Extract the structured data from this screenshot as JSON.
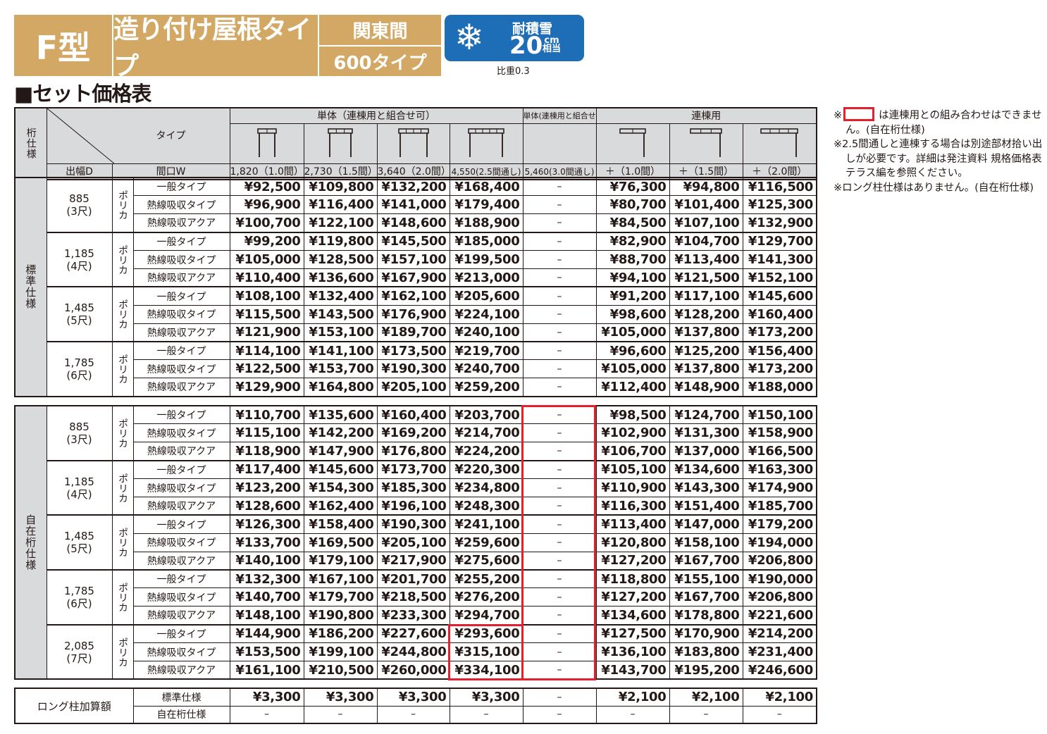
{
  "banner": {
    "type": "F型",
    "roof": "造り付け屋根タイプ",
    "module": "関東間",
    "size": "600タイプ",
    "snow_label": "耐積雪",
    "snow_value": "20",
    "snow_unit": "cm",
    "snow_sub": "相当",
    "ratio": "比重0.3",
    "snow_icon": "snowflake-icon"
  },
  "heading": "■セット価格表",
  "header": {
    "beam_spec": "桁仕様",
    "type_label": "タイプ",
    "depth_label": "出幅D",
    "width_label": "間口W",
    "group_single": "単体（連棟用と組合せ可）",
    "group_single_nc": "単体(連棟用と組合せ不可)",
    "group_linked": "連棟用",
    "columns": [
      "1,820（1.0間）",
      "2,730（1.5間）",
      "3,640（2.0間）",
      "4,550(2.5間通し)",
      "5,460(3.0間通し)",
      "＋（1.0間）",
      "＋（1.5間）",
      "＋（2.0間）"
    ]
  },
  "sections": [
    {
      "label": "標準仕様",
      "groups": [
        {
          "d": "885",
          "shaku": "(3尺)",
          "material": "ポリカ",
          "rows": [
            {
              "type": "一般タイプ",
              "prices": [
                "¥92,500",
                "¥109,800",
                "¥132,200",
                "¥168,400",
                "–",
                "¥76,300",
                "¥94,800",
                "¥116,500"
              ]
            },
            {
              "type": "熱線吸収タイプ",
              "prices": [
                "¥96,900",
                "¥116,400",
                "¥141,000",
                "¥179,400",
                "–",
                "¥80,700",
                "¥101,400",
                "¥125,300"
              ]
            },
            {
              "type": "熱線吸収アクア",
              "prices": [
                "¥100,700",
                "¥122,100",
                "¥148,600",
                "¥188,900",
                "–",
                "¥84,500",
                "¥107,100",
                "¥132,900"
              ]
            }
          ]
        },
        {
          "d": "1,185",
          "shaku": "(4尺)",
          "material": "ポリカ",
          "rows": [
            {
              "type": "一般タイプ",
              "prices": [
                "¥99,200",
                "¥119,800",
                "¥145,500",
                "¥185,000",
                "–",
                "¥82,900",
                "¥104,700",
                "¥129,700"
              ]
            },
            {
              "type": "熱線吸収タイプ",
              "prices": [
                "¥105,000",
                "¥128,500",
                "¥157,100",
                "¥199,500",
                "–",
                "¥88,700",
                "¥113,400",
                "¥141,300"
              ]
            },
            {
              "type": "熱線吸収アクア",
              "prices": [
                "¥110,400",
                "¥136,600",
                "¥167,900",
                "¥213,000",
                "–",
                "¥94,100",
                "¥121,500",
                "¥152,100"
              ]
            }
          ]
        },
        {
          "d": "1,485",
          "shaku": "(5尺)",
          "material": "ポリカ",
          "rows": [
            {
              "type": "一般タイプ",
              "prices": [
                "¥108,100",
                "¥132,400",
                "¥162,100",
                "¥205,600",
                "–",
                "¥91,200",
                "¥117,100",
                "¥145,600"
              ]
            },
            {
              "type": "熱線吸収タイプ",
              "prices": [
                "¥115,500",
                "¥143,500",
                "¥176,900",
                "¥224,100",
                "–",
                "¥98,600",
                "¥128,200",
                "¥160,400"
              ]
            },
            {
              "type": "熱線吸収アクア",
              "prices": [
                "¥121,900",
                "¥153,100",
                "¥189,700",
                "¥240,100",
                "–",
                "¥105,000",
                "¥137,800",
                "¥173,200"
              ]
            }
          ]
        },
        {
          "d": "1,785",
          "shaku": "(6尺)",
          "material": "ポリカ",
          "rows": [
            {
              "type": "一般タイプ",
              "prices": [
                "¥114,100",
                "¥141,100",
                "¥173,500",
                "¥219,700",
                "–",
                "¥96,600",
                "¥125,200",
                "¥156,400"
              ]
            },
            {
              "type": "熱線吸収タイプ",
              "prices": [
                "¥122,500",
                "¥153,700",
                "¥190,300",
                "¥240,700",
                "–",
                "¥105,000",
                "¥137,800",
                "¥173,200"
              ]
            },
            {
              "type": "熱線吸収アクア",
              "prices": [
                "¥129,900",
                "¥164,800",
                "¥205,100",
                "¥259,200",
                "–",
                "¥112,400",
                "¥148,900",
                "¥188,000"
              ]
            }
          ]
        }
      ]
    },
    {
      "label": "自在桁仕様",
      "groups": [
        {
          "d": "885",
          "shaku": "(3尺)",
          "material": "ポリカ",
          "rows": [
            {
              "type": "一般タイプ",
              "prices": [
                "¥110,700",
                "¥135,600",
                "¥160,400",
                "¥203,700",
                "–",
                "¥98,500",
                "¥124,700",
                "¥150,100"
              ]
            },
            {
              "type": "熱線吸収タイプ",
              "prices": [
                "¥115,100",
                "¥142,200",
                "¥169,200",
                "¥214,700",
                "–",
                "¥102,900",
                "¥131,300",
                "¥158,900"
              ]
            },
            {
              "type": "熱線吸収アクア",
              "prices": [
                "¥118,900",
                "¥147,900",
                "¥176,800",
                "¥224,200",
                "–",
                "¥106,700",
                "¥137,000",
                "¥166,500"
              ]
            }
          ]
        },
        {
          "d": "1,185",
          "shaku": "(4尺)",
          "material": "ポリカ",
          "rows": [
            {
              "type": "一般タイプ",
              "prices": [
                "¥117,400",
                "¥145,600",
                "¥173,700",
                "¥220,300",
                "–",
                "¥105,100",
                "¥134,600",
                "¥163,300"
              ]
            },
            {
              "type": "熱線吸収タイプ",
              "prices": [
                "¥123,200",
                "¥154,300",
                "¥185,300",
                "¥234,800",
                "–",
                "¥110,900",
                "¥143,300",
                "¥174,900"
              ]
            },
            {
              "type": "熱線吸収アクア",
              "prices": [
                "¥128,600",
                "¥162,400",
                "¥196,100",
                "¥248,300",
                "–",
                "¥116,300",
                "¥151,400",
                "¥185,700"
              ]
            }
          ]
        },
        {
          "d": "1,485",
          "shaku": "(5尺)",
          "material": "ポリカ",
          "rows": [
            {
              "type": "一般タイプ",
              "prices": [
                "¥126,300",
                "¥158,400",
                "¥190,300",
                "¥241,100",
                "–",
                "¥113,400",
                "¥147,000",
                "¥179,200"
              ]
            },
            {
              "type": "熱線吸収タイプ",
              "prices": [
                "¥133,700",
                "¥169,500",
                "¥205,100",
                "¥259,600",
                "–",
                "¥120,800",
                "¥158,100",
                "¥194,000"
              ]
            },
            {
              "type": "熱線吸収アクア",
              "prices": [
                "¥140,100",
                "¥179,100",
                "¥217,900",
                "¥275,600",
                "–",
                "¥127,200",
                "¥167,700",
                "¥206,800"
              ]
            }
          ]
        },
        {
          "d": "1,785",
          "shaku": "(6尺)",
          "material": "ポリカ",
          "rows": [
            {
              "type": "一般タイプ",
              "prices": [
                "¥132,300",
                "¥167,100",
                "¥201,700",
                "¥255,200",
                "–",
                "¥118,800",
                "¥155,100",
                "¥190,000"
              ]
            },
            {
              "type": "熱線吸収タイプ",
              "prices": [
                "¥140,700",
                "¥179,700",
                "¥218,500",
                "¥276,200",
                "–",
                "¥127,200",
                "¥167,700",
                "¥206,800"
              ]
            },
            {
              "type": "熱線吸収アクア",
              "prices": [
                "¥148,100",
                "¥190,800",
                "¥233,300",
                "¥294,700",
                "–",
                "¥134,600",
                "¥178,800",
                "¥221,600"
              ]
            }
          ]
        },
        {
          "d": "2,085",
          "shaku": "(7尺)",
          "material": "ポリカ",
          "rows": [
            {
              "type": "一般タイプ",
              "prices": [
                "¥144,900",
                "¥186,200",
                "¥227,600",
                "¥293,600",
                "–",
                "¥127,500",
                "¥170,900",
                "¥214,200"
              ]
            },
            {
              "type": "熱線吸収タイプ",
              "prices": [
                "¥153,500",
                "¥199,100",
                "¥244,800",
                "¥315,100",
                "–",
                "¥136,100",
                "¥183,800",
                "¥231,400"
              ]
            },
            {
              "type": "熱線吸収アクア",
              "prices": [
                "¥161,100",
                "¥210,500",
                "¥260,000",
                "¥334,100",
                "–",
                "¥143,700",
                "¥195,200",
                "¥246,600"
              ]
            }
          ]
        }
      ]
    }
  ],
  "long_post": {
    "label": "ロング柱加算額",
    "rows": [
      {
        "spec": "標準仕様",
        "prices": [
          "¥3,300",
          "¥3,300",
          "¥3,300",
          "¥3,300",
          "–",
          "¥2,100",
          "¥2,100",
          "¥2,100"
        ]
      },
      {
        "spec": "自在桁仕様",
        "prices": [
          "–",
          "–",
          "–",
          "–",
          "–",
          "–",
          "–",
          "–"
        ]
      }
    ]
  },
  "notes": {
    "mark": "※",
    "n1": "は連棟用との組み合わせはできません。(自在桁仕様)",
    "n2": "※2.5間通しと連棟する場合は別途部材拾い出しが必要です。詳細は発注資料 規格価格表 テラス編を参照ください。",
    "n3": "※ロング柱仕様はありません。(自在桁仕様)"
  },
  "colors": {
    "tan": "#d3a865",
    "blue": "#1e6db7",
    "red": "#e5202e",
    "header_gray": "#d9dadb"
  }
}
